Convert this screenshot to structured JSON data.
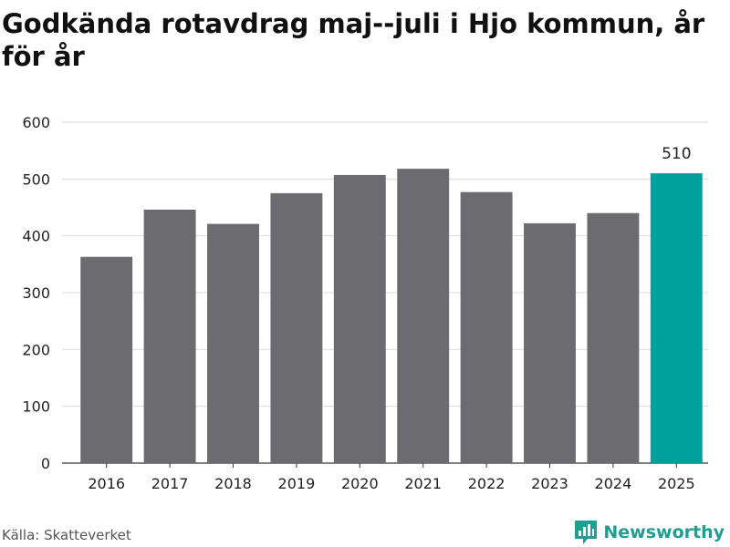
{
  "title": "Godkända rotavdrag maj--juli i Hjo kommun, år för år",
  "source": "Källa: Skatteverket",
  "brand": {
    "name": "Newsworthy",
    "icon": "newsworthy-logo-icon"
  },
  "colors": {
    "bar": "#6b6b70",
    "highlight": "#00a19a",
    "grid": "#dddddd",
    "brand": "#1f9e91"
  },
  "chart_data": {
    "type": "bar",
    "title": "Godkända rotavdrag maj--juli i Hjo kommun, år för år",
    "categories": [
      "2016",
      "2017",
      "2018",
      "2019",
      "2020",
      "2021",
      "2022",
      "2023",
      "2024",
      "2025"
    ],
    "values": [
      363,
      446,
      421,
      475,
      507,
      518,
      477,
      422,
      440,
      510
    ],
    "highlight_index": 9,
    "data_labels": [
      {
        "index": 9,
        "text": "510"
      }
    ],
    "xlabel": "",
    "ylabel": "",
    "ylim": [
      0,
      600
    ],
    "yticks": [
      0,
      100,
      200,
      300,
      400,
      500,
      600
    ],
    "grid": true,
    "legend": "none"
  }
}
